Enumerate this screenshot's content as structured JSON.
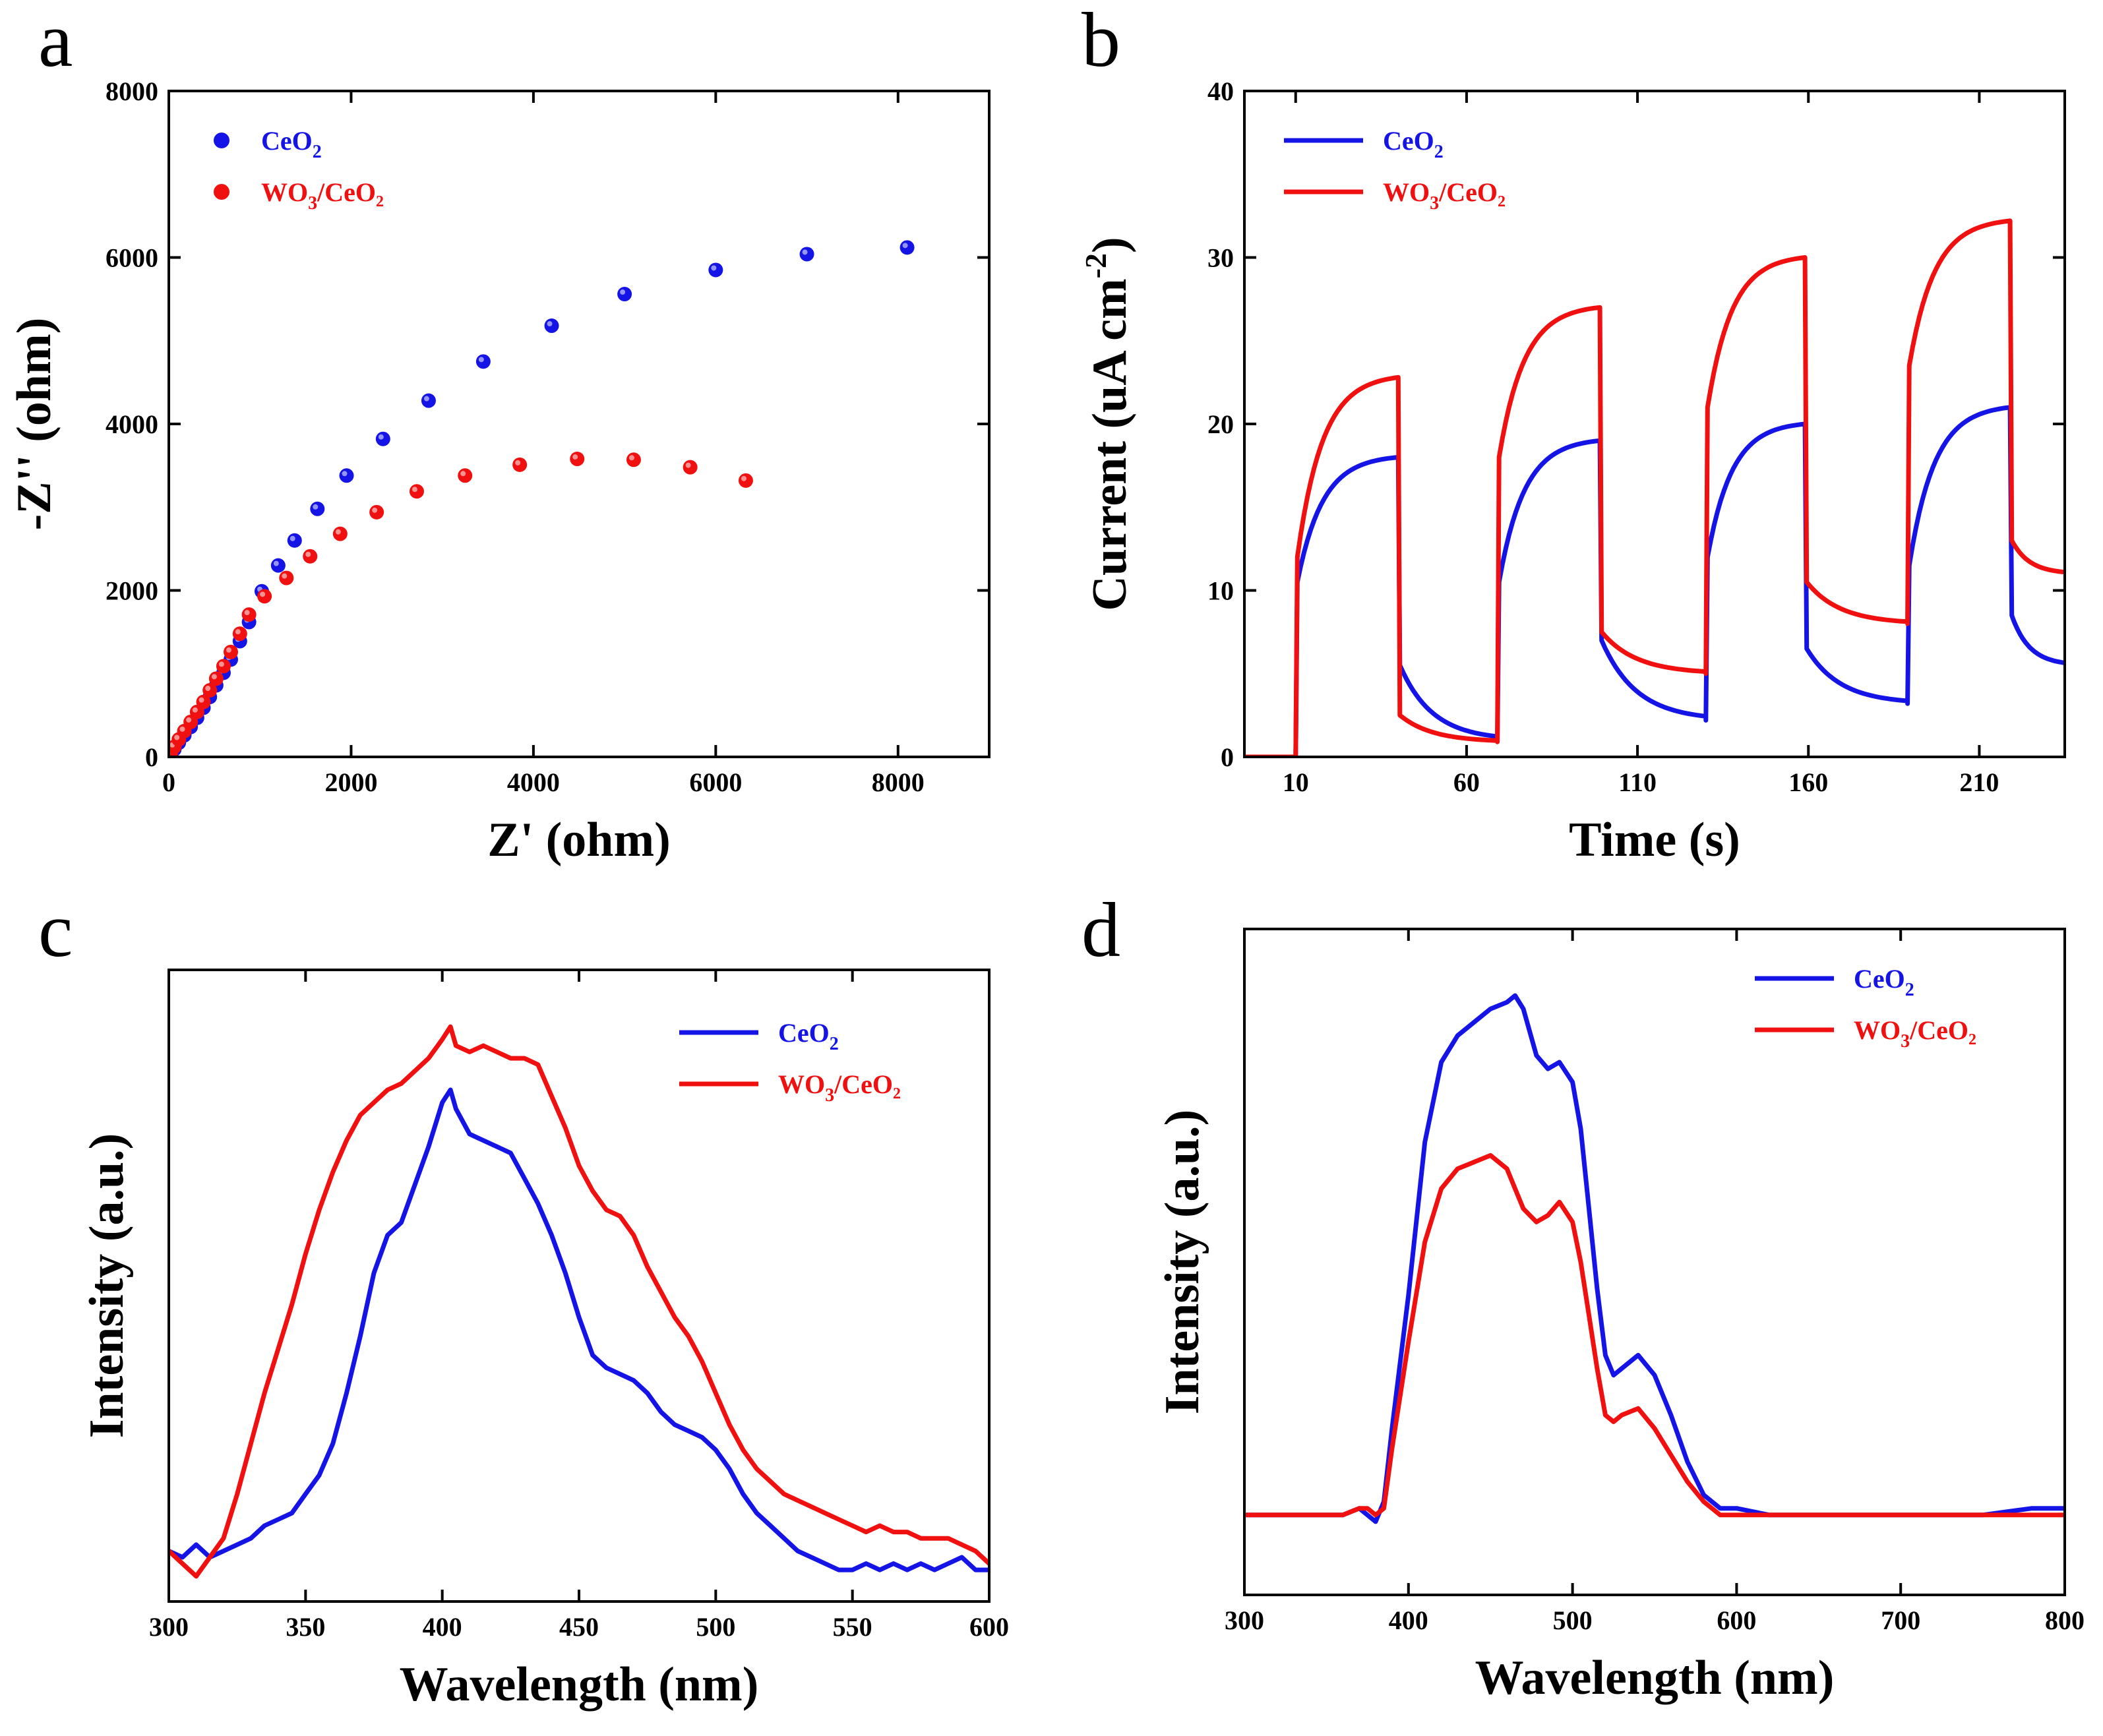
{
  "figure": {
    "colors": {
      "blue": "#1414e6",
      "red": "#f01010",
      "axis": "#000000"
    }
  },
  "chart_data": [
    {
      "panel": "a",
      "type": "scatter",
      "title": "",
      "xlabel": "Z' (ohm)",
      "ylabel": "-Z'' (ohm)",
      "xlim": [
        0,
        9000
      ],
      "ylim": [
        0,
        8000
      ],
      "xticks": [
        0,
        2000,
        4000,
        6000,
        8000
      ],
      "yticks": [
        0,
        2000,
        4000,
        6000,
        8000
      ],
      "legend": "top-left",
      "series": [
        {
          "name": "CeO₂",
          "label_base": "CeO",
          "label_sub": "2",
          "label_tail": "",
          "color": "#1414e6",
          "x": [
            20,
            60,
            110,
            170,
            240,
            310,
            380,
            450,
            520,
            600,
            680,
            780,
            880,
            1020,
            1200,
            1380,
            1630,
            1950,
            2350,
            2850,
            3450,
            4200,
            5000,
            6000,
            7000,
            8100
          ],
          "y": [
            30,
            90,
            170,
            260,
            360,
            470,
            590,
            720,
            860,
            1010,
            1170,
            1390,
            1620,
            1990,
            2300,
            2600,
            2980,
            3380,
            3820,
            4280,
            4750,
            5180,
            5560,
            5850,
            6040,
            6120
          ]
        },
        {
          "name": "WO₃/CeO₂",
          "label_base": "WO",
          "label_sub": "3",
          "label_tail": "/CeO₂",
          "color": "#f01010",
          "x": [
            20,
            60,
            110,
            170,
            240,
            310,
            380,
            450,
            520,
            600,
            680,
            780,
            880,
            1050,
            1290,
            1550,
            1880,
            2280,
            2720,
            3250,
            3850,
            4480,
            5100,
            5720,
            6330
          ],
          "y": [
            40,
            120,
            210,
            310,
            420,
            540,
            660,
            800,
            940,
            1090,
            1260,
            1480,
            1710,
            1930,
            2150,
            2410,
            2680,
            2940,
            3190,
            3380,
            3510,
            3580,
            3570,
            3480,
            3320
          ]
        }
      ]
    },
    {
      "panel": "b",
      "type": "line",
      "title": "",
      "xlabel": "Time (s)",
      "ylabel_main": "Current (uA cm",
      "ylabel_sup": "-2",
      "ylabel_tail": ")",
      "xlim": [
        -5,
        235
      ],
      "ylim": [
        0,
        40
      ],
      "xticks": [
        10,
        60,
        110,
        160,
        210
      ],
      "yticks": [
        0,
        10,
        20,
        30,
        40
      ],
      "legend": "top-left",
      "light_on": [
        10,
        69,
        130,
        189
      ],
      "light_off": [
        40,
        99,
        159,
        219
      ],
      "series": [
        {
          "name": "CeO₂",
          "label_base": "CeO",
          "label_sub": "2",
          "label_tail": "",
          "color": "#1414e6",
          "on_start": [
            10.5,
            10.5,
            12.0,
            11.5
          ],
          "on_end": [
            18.0,
            19.0,
            20.0,
            21.0
          ],
          "off_start": [
            5.5,
            7.0,
            6.5,
            8.5
          ],
          "off_end": [
            1.0,
            2.2,
            3.2,
            5.5
          ]
        },
        {
          "name": "WO₃/CeO₂",
          "label_base": "WO",
          "label_sub": "3",
          "label_tail": "/CeO₂",
          "color": "#f01010",
          "on_start": [
            12.0,
            18.0,
            21.0,
            23.5
          ],
          "on_end": [
            22.8,
            27.0,
            30.0,
            32.2
          ],
          "off_start": [
            2.5,
            7.5,
            10.5,
            13.0
          ],
          "off_end": [
            0.9,
            5.0,
            8.0,
            11.0
          ]
        }
      ]
    },
    {
      "panel": "c",
      "type": "line",
      "title": "",
      "xlabel": "Wavelength (nm)",
      "ylabel": "Intensity (a.u.)",
      "xlim": [
        300,
        600
      ],
      "ylim": [
        0,
        1.0
      ],
      "xticks": [
        300,
        350,
        400,
        450,
        500,
        550,
        600
      ],
      "yticks": [],
      "legend": "top-right",
      "series": [
        {
          "name": "CeO₂",
          "label_base": "CeO",
          "label_sub": "2",
          "label_tail": "",
          "color": "#1414e6",
          "x": [
            300,
            305,
            310,
            315,
            320,
            325,
            330,
            335,
            340,
            345,
            350,
            355,
            360,
            365,
            370,
            375,
            380,
            385,
            390,
            395,
            400,
            403,
            405,
            410,
            415,
            420,
            425,
            430,
            435,
            440,
            445,
            450,
            455,
            460,
            465,
            470,
            475,
            480,
            485,
            490,
            495,
            500,
            505,
            510,
            515,
            520,
            525,
            530,
            535,
            540,
            545,
            550,
            555,
            560,
            565,
            570,
            575,
            580,
            585,
            590,
            595,
            600
          ],
          "y": [
            0.08,
            0.07,
            0.09,
            0.07,
            0.08,
            0.09,
            0.1,
            0.12,
            0.13,
            0.14,
            0.17,
            0.2,
            0.25,
            0.33,
            0.42,
            0.52,
            0.58,
            0.6,
            0.66,
            0.72,
            0.79,
            0.81,
            0.78,
            0.74,
            0.73,
            0.72,
            0.71,
            0.67,
            0.63,
            0.58,
            0.52,
            0.45,
            0.39,
            0.37,
            0.36,
            0.35,
            0.33,
            0.3,
            0.28,
            0.27,
            0.26,
            0.24,
            0.21,
            0.17,
            0.14,
            0.12,
            0.1,
            0.08,
            0.07,
            0.06,
            0.05,
            0.05,
            0.06,
            0.05,
            0.06,
            0.05,
            0.06,
            0.05,
            0.06,
            0.07,
            0.05,
            0.05
          ]
        },
        {
          "name": "WO₃/CeO₂",
          "label_base": "WO",
          "label_sub": "3",
          "label_tail": "/CeO₂",
          "color": "#f01010",
          "x": [
            300,
            305,
            310,
            315,
            320,
            325,
            330,
            335,
            340,
            345,
            350,
            355,
            360,
            365,
            370,
            375,
            380,
            385,
            390,
            395,
            400,
            403,
            405,
            410,
            415,
            420,
            425,
            430,
            435,
            440,
            445,
            450,
            455,
            460,
            465,
            470,
            475,
            480,
            485,
            490,
            495,
            500,
            505,
            510,
            515,
            520,
            525,
            530,
            535,
            540,
            545,
            550,
            555,
            560,
            565,
            570,
            575,
            580,
            585,
            590,
            595,
            600
          ],
          "y": [
            0.08,
            0.06,
            0.04,
            0.07,
            0.1,
            0.17,
            0.25,
            0.33,
            0.4,
            0.47,
            0.55,
            0.62,
            0.68,
            0.73,
            0.77,
            0.79,
            0.81,
            0.82,
            0.84,
            0.86,
            0.89,
            0.91,
            0.88,
            0.87,
            0.88,
            0.87,
            0.86,
            0.86,
            0.85,
            0.8,
            0.75,
            0.69,
            0.65,
            0.62,
            0.61,
            0.58,
            0.53,
            0.49,
            0.45,
            0.42,
            0.38,
            0.33,
            0.28,
            0.24,
            0.21,
            0.19,
            0.17,
            0.16,
            0.15,
            0.14,
            0.13,
            0.12,
            0.11,
            0.12,
            0.11,
            0.11,
            0.1,
            0.1,
            0.1,
            0.09,
            0.08,
            0.06
          ]
        }
      ]
    },
    {
      "panel": "d",
      "type": "line",
      "title": "",
      "xlabel": "Wavelength (nm)",
      "ylabel": "Intensity (a.u.)",
      "xlim": [
        300,
        800
      ],
      "ylim": [
        0,
        1.0
      ],
      "xticks": [
        300,
        400,
        500,
        600,
        700,
        800
      ],
      "yticks": [],
      "legend": "top-right",
      "series": [
        {
          "name": "CeO₂",
          "label_base": "CeO",
          "label_sub": "2",
          "label_tail": "",
          "color": "#1414e6",
          "x": [
            300,
            360,
            370,
            375,
            380,
            385,
            390,
            400,
            410,
            420,
            430,
            440,
            450,
            460,
            465,
            470,
            478,
            485,
            492,
            500,
            505,
            510,
            515,
            520,
            525,
            530,
            540,
            550,
            560,
            570,
            580,
            590,
            600,
            620,
            650,
            700,
            750,
            780,
            800
          ],
          "y": [
            0.12,
            0.12,
            0.13,
            0.12,
            0.11,
            0.14,
            0.25,
            0.45,
            0.68,
            0.8,
            0.84,
            0.86,
            0.88,
            0.89,
            0.9,
            0.88,
            0.81,
            0.79,
            0.8,
            0.77,
            0.7,
            0.58,
            0.46,
            0.36,
            0.33,
            0.34,
            0.36,
            0.33,
            0.27,
            0.2,
            0.15,
            0.13,
            0.13,
            0.12,
            0.12,
            0.12,
            0.12,
            0.13,
            0.13
          ]
        },
        {
          "name": "WO₃/CeO₂",
          "label_base": "WO",
          "label_sub": "3",
          "label_tail": "/CeO₂",
          "color": "#f01010",
          "x": [
            300,
            360,
            370,
            375,
            380,
            385,
            390,
            400,
            410,
            420,
            430,
            440,
            450,
            460,
            465,
            470,
            478,
            485,
            492,
            500,
            505,
            510,
            515,
            520,
            525,
            530,
            540,
            550,
            560,
            570,
            580,
            590,
            600,
            620,
            650,
            700,
            750,
            780,
            800
          ],
          "y": [
            0.12,
            0.12,
            0.13,
            0.13,
            0.12,
            0.13,
            0.22,
            0.38,
            0.53,
            0.61,
            0.64,
            0.65,
            0.66,
            0.64,
            0.61,
            0.58,
            0.56,
            0.57,
            0.59,
            0.56,
            0.5,
            0.42,
            0.34,
            0.27,
            0.26,
            0.27,
            0.28,
            0.25,
            0.21,
            0.17,
            0.14,
            0.12,
            0.12,
            0.12,
            0.12,
            0.12,
            0.12,
            0.12,
            0.12
          ]
        }
      ]
    }
  ]
}
